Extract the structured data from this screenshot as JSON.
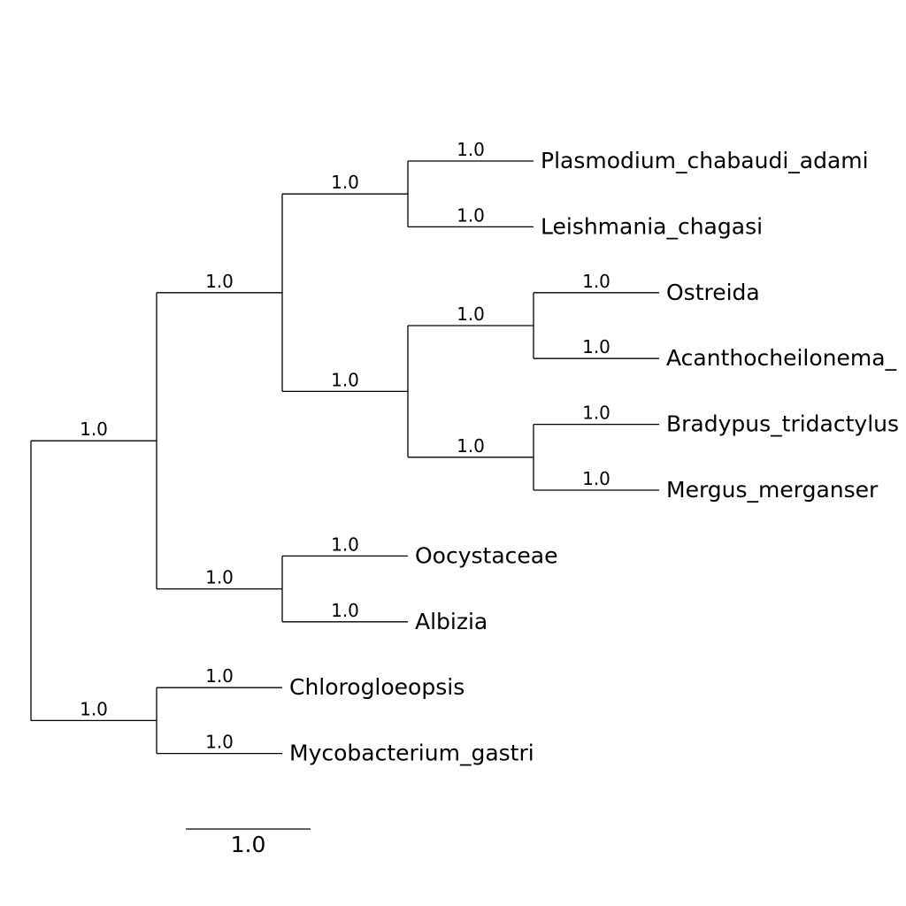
{
  "tree": {
    "root_support": "1.0",
    "children": [
      {
        "support": "1.0",
        "children": [
          {
            "support": "1.0",
            "children": [
              {
                "support": "1.0",
                "children": [
                  {
                    "support": "1.0",
                    "name": "Plasmodium_chabaudi_adami"
                  },
                  {
                    "support": "1.0",
                    "name": "Leishmania_chagasi"
                  }
                ]
              },
              {
                "support": "1.0",
                "children": [
                  {
                    "support": "1.0",
                    "children": [
                      {
                        "support": "1.0",
                        "name": "Ostreida"
                      },
                      {
                        "support": "1.0",
                        "name": "Acanthocheilonema_"
                      }
                    ]
                  },
                  {
                    "support": "1.0",
                    "children": [
                      {
                        "support": "1.0",
                        "name": "Bradypus_tridactylus"
                      },
                      {
                        "support": "1.0",
                        "name": "Mergus_merganser"
                      }
                    ]
                  }
                ]
              }
            ]
          },
          {
            "support": "1.0",
            "children": [
              {
                "support": "1.0",
                "name": "Oocystaceae"
              },
              {
                "support": "1.0",
                "name": "Albizia"
              }
            ]
          }
        ]
      },
      {
        "support": "1.0",
        "children": [
          {
            "support": "1.0",
            "name": "Chlorogloeopsis"
          },
          {
            "support": "1.0",
            "name": "Mycobacterium_gastri"
          }
        ]
      }
    ]
  },
  "scale_bar": {
    "label": "1.0"
  }
}
